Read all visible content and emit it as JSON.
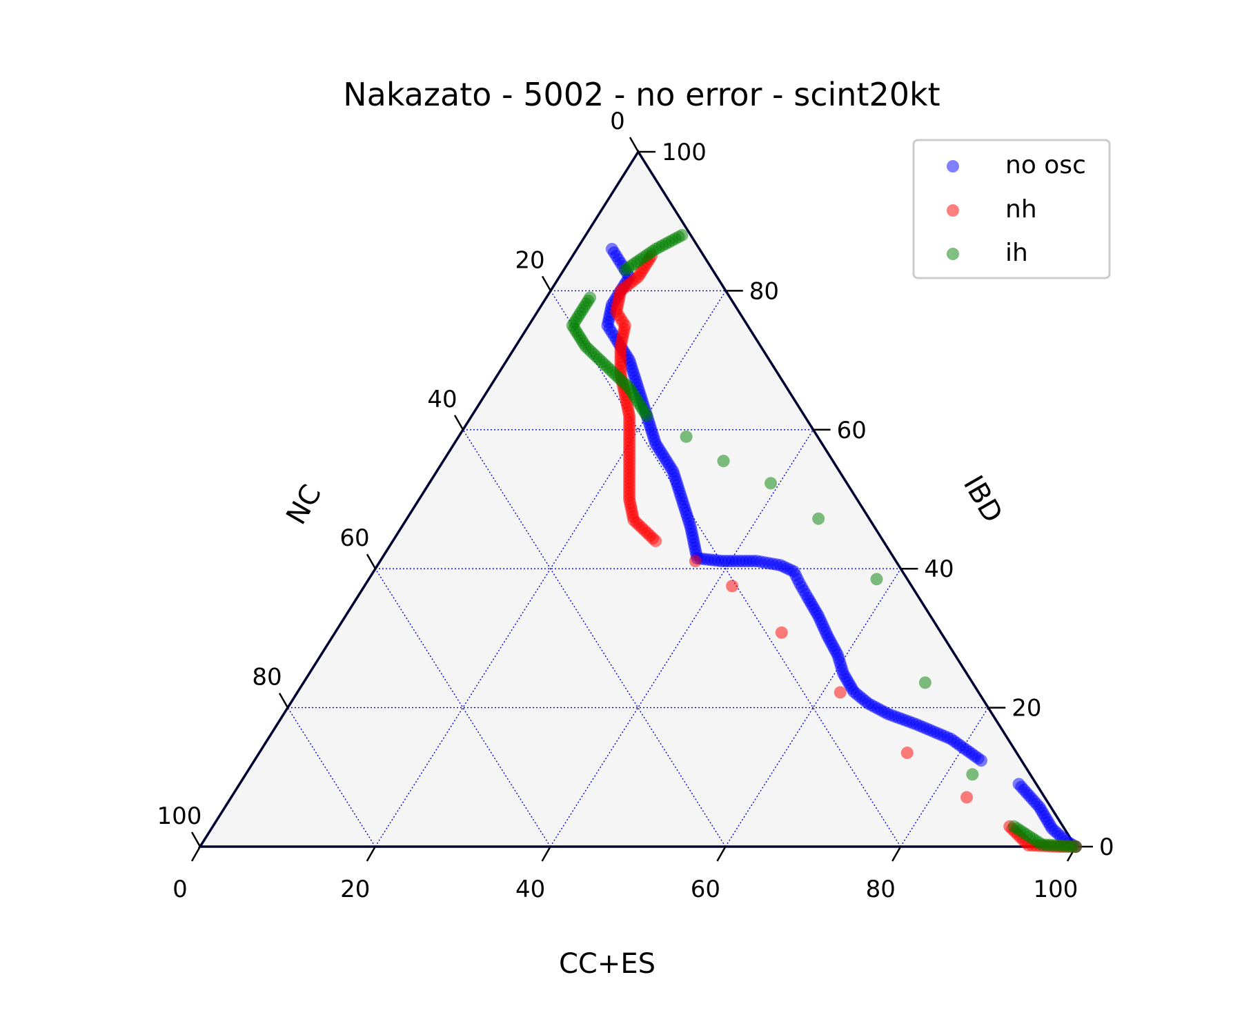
{
  "chart_data": {
    "type": "scatter",
    "subtype": "ternary",
    "title": "Nakazato - 5002 - no error - scint20kt",
    "axes": {
      "bottom": {
        "label": "CC+ES",
        "ticks": [
          "0",
          "20",
          "40",
          "60",
          "80",
          "100"
        ]
      },
      "right": {
        "label": "IBD",
        "ticks": [
          "0",
          "20",
          "40",
          "60",
          "80",
          "100"
        ]
      },
      "left": {
        "label": "NC",
        "ticks": [
          "0",
          "20",
          "40",
          "60",
          "80",
          "100"
        ]
      },
      "range": [
        0,
        100
      ],
      "grid": true
    },
    "legend": {
      "position": "top-right",
      "entries": [
        "no osc",
        "nh",
        "ih"
      ]
    },
    "colors": {
      "no osc": "#0000ff",
      "nh": "#ff0000",
      "ih": "#008000"
    },
    "series": [
      {
        "name": "no osc",
        "points": [
          {
            "ccs": 4,
            "ibd": 86
          },
          {
            "ccs": 6,
            "ibd": 84
          },
          {
            "ccs": 8,
            "ibd": 82
          },
          {
            "ccs": 8,
            "ibd": 78
          },
          {
            "ccs": 9,
            "ibd": 75
          },
          {
            "ccs": 11,
            "ibd": 73
          },
          {
            "ccs": 14,
            "ibd": 70
          },
          {
            "ccs": 17,
            "ibd": 66
          },
          {
            "ccs": 20,
            "ibd": 62
          },
          {
            "ccs": 23,
            "ibd": 58
          },
          {
            "ccs": 27,
            "ibd": 54
          },
          {
            "ccs": 30,
            "ibd": 50
          },
          {
            "ccs": 33,
            "ibd": 46
          },
          {
            "ccs": 35,
            "ibd": 43
          },
          {
            "ccs": 36,
            "ibd": 41.5
          },
          {
            "ccs": 39,
            "ibd": 41.1
          },
          {
            "ccs": 43,
            "ibd": 41.1
          },
          {
            "ccs": 46,
            "ibd": 40.5
          },
          {
            "ccs": 48,
            "ibd": 39.6
          },
          {
            "ccs": 49.5,
            "ibd": 37.9
          },
          {
            "ccs": 51.5,
            "ibd": 35.8
          },
          {
            "ccs": 54,
            "ibd": 33.2
          },
          {
            "ccs": 56.5,
            "ibd": 30.3
          },
          {
            "ccs": 59,
            "ibd": 27.6
          },
          {
            "ccs": 61,
            "ibd": 24.9
          },
          {
            "ccs": 63.5,
            "ibd": 22.3
          },
          {
            "ccs": 66,
            "ibd": 20.6
          },
          {
            "ccs": 69,
            "ibd": 19.1
          },
          {
            "ccs": 73,
            "ibd": 17.6
          },
          {
            "ccs": 78,
            "ibd": 15.5
          },
          {
            "ccs": 83,
            "ibd": 12.4
          },
          {
            "ccs": 89,
            "ibd": 9.0
          },
          {
            "ccs": 93,
            "ibd": 5.7
          },
          {
            "ccs": 96,
            "ibd": 2.6
          },
          {
            "ccs": 98.5,
            "ibd": 0.8
          },
          {
            "ccs": 100,
            "ibd": 0
          }
        ]
      },
      {
        "name": "nh",
        "points": [
          {
            "ccs": 9,
            "ibd": 85
          },
          {
            "ccs": 9,
            "ibd": 82
          },
          {
            "ccs": 8,
            "ibd": 80
          },
          {
            "ccs": 9,
            "ibd": 77
          },
          {
            "ccs": 11,
            "ibd": 75
          },
          {
            "ccs": 12,
            "ibd": 72
          },
          {
            "ccs": 14,
            "ibd": 68
          },
          {
            "ccs": 16,
            "ibd": 65
          },
          {
            "ccs": 18,
            "ibd": 62
          },
          {
            "ccs": 20,
            "ibd": 58
          },
          {
            "ccs": 22,
            "ibd": 54
          },
          {
            "ccs": 24,
            "ibd": 50
          },
          {
            "ccs": 26,
            "ibd": 47
          },
          {
            "ccs": 30,
            "ibd": 44
          },
          {
            "ccs": 36,
            "ibd": 41.1
          },
          {
            "ccs": 42,
            "ibd": 37.5
          },
          {
            "ccs": 51,
            "ibd": 30.8
          },
          {
            "ccs": 62,
            "ibd": 22.2
          },
          {
            "ccs": 74,
            "ibd": 13.5
          },
          {
            "ccs": 84,
            "ibd": 7.1
          },
          {
            "ccs": 91,
            "ibd": 2.9
          },
          {
            "ccs": 94.5,
            "ibd": 0.2
          },
          {
            "ccs": 98,
            "ibd": 0
          },
          {
            "ccs": 100,
            "ibd": 0
          }
        ]
      },
      {
        "name": "ih",
        "points": [
          {
            "ccs": 11,
            "ibd": 88
          },
          {
            "ccs": 9,
            "ibd": 86
          },
          {
            "ccs": 7,
            "ibd": 83
          },
          {
            "ccs": 5,
            "ibd": 79
          },
          {
            "ccs": 5,
            "ibd": 75
          },
          {
            "ccs": 8,
            "ibd": 72
          },
          {
            "ccs": 12,
            "ibd": 69
          },
          {
            "ccs": 16,
            "ibd": 66
          },
          {
            "ccs": 20,
            "ibd": 62
          },
          {
            "ccs": 26,
            "ibd": 59
          },
          {
            "ccs": 32,
            "ibd": 55.5
          },
          {
            "ccs": 39,
            "ibd": 52.3
          },
          {
            "ccs": 47,
            "ibd": 47.2
          },
          {
            "ccs": 58,
            "ibd": 38.5
          },
          {
            "ccs": 71,
            "ibd": 23.6
          },
          {
            "ccs": 83,
            "ibd": 10.4
          },
          {
            "ccs": 91.5,
            "ibd": 2.9
          },
          {
            "ccs": 96,
            "ibd": 0.3
          },
          {
            "ccs": 100,
            "ibd": 0
          }
        ]
      }
    ]
  }
}
